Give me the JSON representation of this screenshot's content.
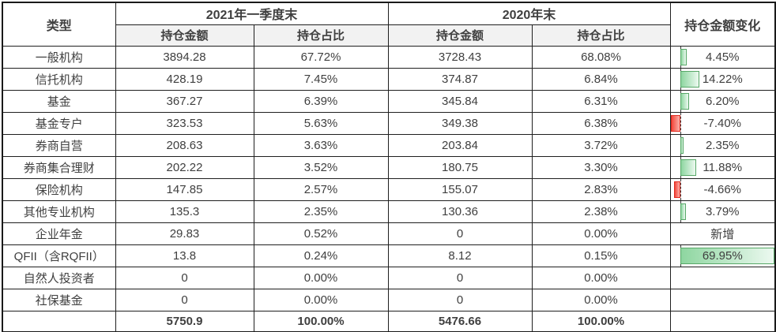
{
  "headers": {
    "type": "类型",
    "group_2021": "2021年一季度末",
    "group_2020": "2020年末",
    "change": "持仓金额变化",
    "amount": "持仓金额",
    "ratio": "持仓占比"
  },
  "databar": {
    "max": 69.95,
    "min": -7.4,
    "positive_border_color": "#58a868",
    "positive_fill_color": "#8ed6a0",
    "negative_border_color": "#e02a1f",
    "negative_fill_color": "#f4473c",
    "axis_color": "#3a3a3a",
    "axis_style": "dashed"
  },
  "rows": [
    {
      "type": "一般机构",
      "amount_2021": "3894.28",
      "ratio_2021": "67.72%",
      "amount_2020": "3728.43",
      "ratio_2020": "68.08%",
      "change_label": "4.45%",
      "change_value": 4.45
    },
    {
      "type": "信托机构",
      "amount_2021": "428.19",
      "ratio_2021": "7.45%",
      "amount_2020": "374.87",
      "ratio_2020": "6.84%",
      "change_label": "14.22%",
      "change_value": 14.22
    },
    {
      "type": "基金",
      "amount_2021": "367.27",
      "ratio_2021": "6.39%",
      "amount_2020": "345.84",
      "ratio_2020": "6.31%",
      "change_label": "6.20%",
      "change_value": 6.2
    },
    {
      "type": "基金专户",
      "amount_2021": "323.53",
      "ratio_2021": "5.63%",
      "amount_2020": "349.38",
      "ratio_2020": "6.38%",
      "change_label": "-7.40%",
      "change_value": -7.4
    },
    {
      "type": "券商自营",
      "amount_2021": "208.63",
      "ratio_2021": "3.63%",
      "amount_2020": "203.84",
      "ratio_2020": "3.72%",
      "change_label": "2.35%",
      "change_value": 2.35
    },
    {
      "type": "券商集合理财",
      "amount_2021": "202.22",
      "ratio_2021": "3.52%",
      "amount_2020": "180.75",
      "ratio_2020": "3.30%",
      "change_label": "11.88%",
      "change_value": 11.88
    },
    {
      "type": "保险机构",
      "amount_2021": "147.85",
      "ratio_2021": "2.57%",
      "amount_2020": "155.07",
      "ratio_2020": "2.83%",
      "change_label": "-4.66%",
      "change_value": -4.66
    },
    {
      "type": "其他专业机构",
      "amount_2021": "135.3",
      "ratio_2021": "2.35%",
      "amount_2020": "130.36",
      "ratio_2020": "2.38%",
      "change_label": "3.79%",
      "change_value": 3.79
    },
    {
      "type": "企业年金",
      "amount_2021": "29.83",
      "ratio_2021": "0.52%",
      "amount_2020": "0",
      "ratio_2020": "0.00%",
      "change_label": "新增",
      "change_value": null
    },
    {
      "type": "QFII（含RQFII）",
      "amount_2021": "13.8",
      "ratio_2021": "0.24%",
      "amount_2020": "8.12",
      "ratio_2020": "0.15%",
      "change_label": "69.95%",
      "change_value": 69.95
    },
    {
      "type": "自然人投资者",
      "amount_2021": "0",
      "ratio_2021": "0.00%",
      "amount_2020": "0",
      "ratio_2020": "0.00%",
      "change_label": "",
      "change_value": null
    },
    {
      "type": "社保基金",
      "amount_2021": "0",
      "ratio_2021": "0.00%",
      "amount_2020": "0",
      "ratio_2020": "0.00%",
      "change_label": "",
      "change_value": null
    }
  ],
  "total": {
    "amount_2021": "5750.9",
    "ratio_2021": "100.00%",
    "amount_2020": "5476.66",
    "ratio_2020": "100.00%"
  }
}
